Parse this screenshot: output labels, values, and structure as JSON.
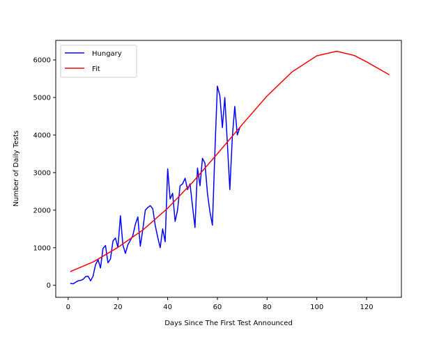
{
  "chart_data": {
    "type": "line",
    "title": "",
    "xlabel": "Days Since The First Test Announced",
    "ylabel": "Number of Daily Tests",
    "xlim": [
      -5,
      134
    ],
    "ylim": [
      -320,
      6520
    ],
    "xticks": [
      0,
      20,
      40,
      60,
      80,
      100,
      120
    ],
    "yticks": [
      0,
      1000,
      2000,
      3000,
      4000,
      5000,
      6000
    ],
    "grid": false,
    "legend_position": "top-left",
    "series": [
      {
        "name": "Hungary",
        "color": "#0000ff",
        "x": [
          1,
          2,
          3,
          4,
          5,
          6,
          7,
          8,
          9,
          10,
          11,
          12,
          13,
          14,
          15,
          16,
          17,
          18,
          19,
          20,
          21,
          22,
          23,
          24,
          25,
          26,
          27,
          28,
          29,
          30,
          31,
          32,
          33,
          34,
          35,
          36,
          37,
          38,
          39,
          40,
          41,
          42,
          43,
          44,
          45,
          46,
          47,
          48,
          49,
          50,
          51,
          52,
          53,
          54,
          55,
          56,
          57,
          58,
          59,
          60,
          61,
          62,
          63,
          64,
          65,
          66,
          67,
          68,
          69
        ],
        "y": [
          50,
          40,
          80,
          120,
          130,
          160,
          230,
          240,
          120,
          240,
          550,
          680,
          460,
          980,
          1060,
          600,
          700,
          1180,
          1260,
          1010,
          1850,
          1080,
          850,
          1080,
          1200,
          1320,
          1620,
          1820,
          1040,
          1480,
          2000,
          2070,
          2120,
          2040,
          1600,
          1280,
          1000,
          1500,
          1160,
          3100,
          2300,
          2450,
          1700,
          2000,
          2650,
          2700,
          2850,
          2550,
          2700,
          2100,
          1540,
          3120,
          2650,
          3380,
          3250,
          2450,
          1960,
          1600,
          3560,
          5300,
          5050,
          4200,
          5000,
          3800,
          2550,
          3950,
          4760,
          4000,
          4200
        ]
      },
      {
        "name": "Fit",
        "color": "#ff0000",
        "x": [
          1,
          10,
          20,
          30,
          40,
          50,
          60,
          70,
          80,
          90,
          100,
          108,
          115,
          120,
          129
        ],
        "y": [
          370,
          620,
          1010,
          1470,
          2050,
          2740,
          3500,
          4280,
          5040,
          5680,
          6110,
          6230,
          6120,
          5950,
          5610
        ]
      }
    ]
  }
}
